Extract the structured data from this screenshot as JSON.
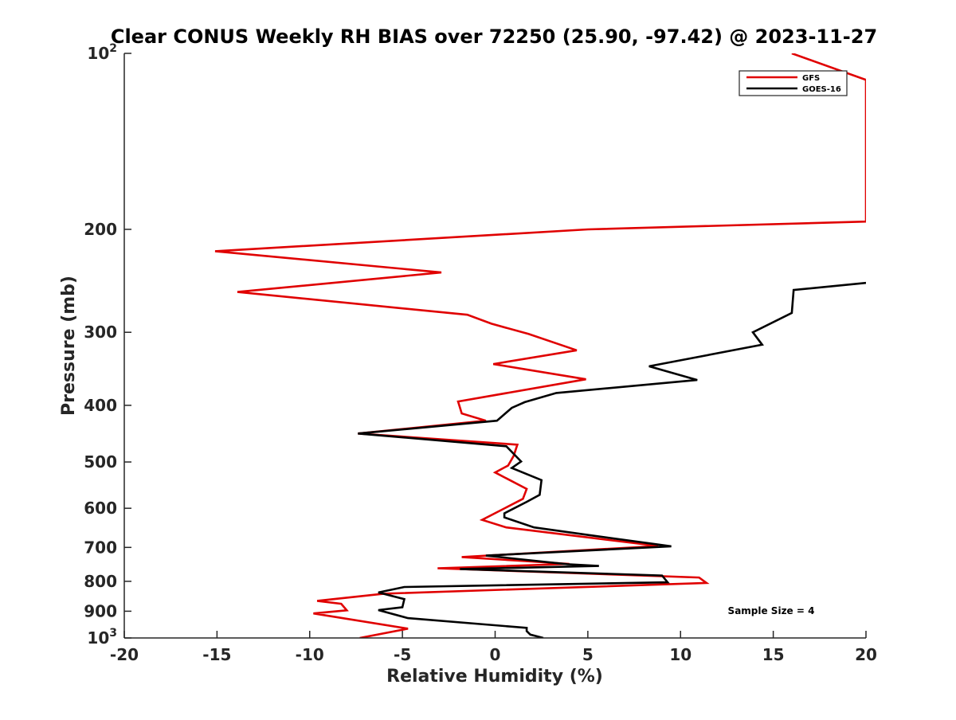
{
  "chart_data": {
    "type": "line",
    "title": "Clear CONUS Weekly RH BIAS over 72250 (25.90, -97.42) @ 2023-11-27",
    "xlabel": "Relative Humidity (%)",
    "ylabel": "Pressure (mb)",
    "xlim": [
      -20,
      20
    ],
    "ylim": [
      100,
      1000
    ],
    "yscale": "log",
    "y_reversed": true,
    "x_ticks": [
      -20,
      -15,
      -10,
      -5,
      0,
      5,
      10,
      15,
      20
    ],
    "x_tick_labels": [
      "-20",
      "-15",
      "-10",
      "-5",
      "0",
      "5",
      "10",
      "15",
      "20"
    ],
    "y_ticks": [
      100,
      200,
      300,
      400,
      500,
      600,
      700,
      800,
      900,
      1000
    ],
    "y_tick_labels": [
      "",
      "200",
      "300",
      "400",
      "500",
      "600",
      "700",
      "800",
      "900",
      ""
    ],
    "y_tick_power": [
      {
        "value": 100,
        "base": "10",
        "exp": "2"
      },
      {
        "value": 1000,
        "base": "10",
        "exp": "3"
      }
    ],
    "grid": false,
    "legend_position": "top-right",
    "annotation": "Sample Size = 4",
    "series": [
      {
        "name": "GFS",
        "color": "#e00000",
        "points": [
          [
            16,
            100
          ],
          [
            20,
            111
          ],
          [
            20,
            194
          ],
          [
            5,
            200
          ],
          [
            -15.1,
            218
          ],
          [
            -2.9,
            237
          ],
          [
            -13.9,
            256
          ],
          [
            -1.5,
            280
          ],
          [
            -0.2,
            290
          ],
          [
            1.8,
            302
          ],
          [
            4.4,
            322
          ],
          [
            -0.1,
            340
          ],
          [
            4.9,
            361
          ],
          [
            -2,
            394
          ],
          [
            -1.8,
            413
          ],
          [
            -0.5,
            425
          ],
          [
            -7.4,
            447
          ],
          [
            1.2,
            467
          ],
          [
            1,
            488
          ],
          [
            0.7,
            507
          ],
          [
            0,
            521
          ],
          [
            1.7,
            556
          ],
          [
            1.5,
            578
          ],
          [
            0.6,
            598
          ],
          [
            -0.7,
            628
          ],
          [
            0.6,
            647
          ],
          [
            8.8,
            696
          ],
          [
            -1.8,
            727
          ],
          [
            4,
            747
          ],
          [
            -3.1,
            760
          ],
          [
            11,
            788
          ],
          [
            11.4,
            805
          ],
          [
            -6,
            840
          ],
          [
            -9.6,
            864
          ],
          [
            -8.3,
            874
          ],
          [
            -8,
            897
          ],
          [
            -9.8,
            908
          ],
          [
            -4.7,
            964
          ],
          [
            -7.3,
            1000
          ]
        ]
      },
      {
        "name": "GOES-16",
        "color": "#000000",
        "points": [
          [
            20,
            247
          ],
          [
            16.1,
            254
          ],
          [
            16,
            278
          ],
          [
            13.9,
            300
          ],
          [
            14.4,
            315
          ],
          [
            8.3,
            343
          ],
          [
            10.9,
            362
          ],
          [
            3.3,
            381
          ],
          [
            1.6,
            395
          ],
          [
            0.9,
            404
          ],
          [
            0.1,
            425
          ],
          [
            -7.4,
            447
          ],
          [
            0.6,
            470
          ],
          [
            1.4,
            499
          ],
          [
            0.9,
            512
          ],
          [
            2.5,
            537
          ],
          [
            2.4,
            569
          ],
          [
            1.7,
            585
          ],
          [
            0.5,
            612
          ],
          [
            0.5,
            622
          ],
          [
            2.1,
            647
          ],
          [
            5.1,
            667
          ],
          [
            9.5,
            697
          ],
          [
            -0.5,
            723
          ],
          [
            3.9,
            748
          ],
          [
            5.6,
            753
          ],
          [
            -1.9,
            762
          ],
          [
            9,
            782
          ],
          [
            9.3,
            803
          ],
          [
            -4.9,
            818
          ],
          [
            -6.3,
            836
          ],
          [
            -4.9,
            858
          ],
          [
            -5,
            886
          ],
          [
            -6.3,
            896
          ],
          [
            -4.7,
            925
          ],
          [
            1.7,
            961
          ],
          [
            1.7,
            973
          ],
          [
            1.9,
            987
          ],
          [
            2.6,
            1000
          ]
        ]
      }
    ]
  }
}
